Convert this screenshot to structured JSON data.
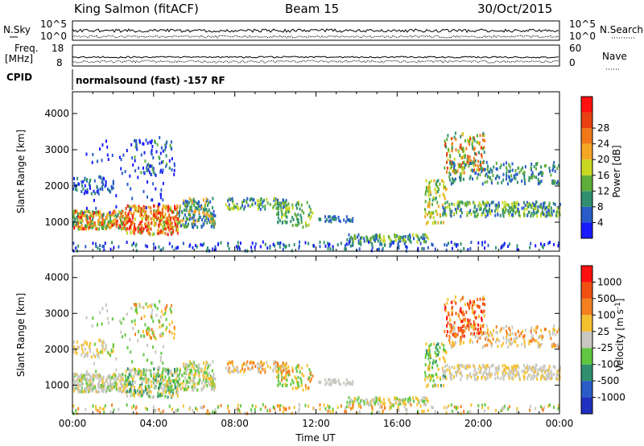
{
  "header": {
    "station": "King Salmon (fitACF)",
    "beam": "Beam 15",
    "date": "30/Oct/2015"
  },
  "top_strip": {
    "nsky_label": "N.Sky",
    "nsky_ticks": [
      "10^5",
      "10^0"
    ],
    "nsearch_label": "N.Search",
    "nsearch_ticks": [
      "10^5",
      "10^0"
    ],
    "freq_label": "Freq.",
    "freq_unit": "[MHz]",
    "freq_ticks": [
      "18",
      "8"
    ],
    "nave_label": "Nave",
    "nave_ticks": [
      "60",
      "0"
    ],
    "cpid_label": "CPID",
    "cpid_text": "normalsound (fast) -157 RF"
  },
  "chart_data": [
    {
      "type": "heatmap",
      "name": "power",
      "ylabel": "Slant Range [km]",
      "xlabel": "",
      "ylim": [
        200,
        4600
      ],
      "yticks": [
        "1000",
        "2000",
        "3000",
        "4000"
      ],
      "colorbar": {
        "label": "Power [dB]",
        "ticks": [
          "4",
          "8",
          "12",
          "16",
          "20",
          "24",
          "28"
        ],
        "colors": [
          "#1a1aff",
          "#2a5cc8",
          "#2f8f6f",
          "#5fae3a",
          "#c8d820",
          "#f5a623",
          "#f07818",
          "#e84010",
          "#ff1010"
        ]
      }
    },
    {
      "type": "heatmap",
      "name": "velocity",
      "ylabel": "Slant Range [km]",
      "xlabel": "Time UT",
      "ylim": [
        200,
        4600
      ],
      "yticks": [
        "1000",
        "2000",
        "3000",
        "4000"
      ],
      "xticks": [
        "00:00",
        "04:00",
        "08:00",
        "12:00",
        "16:00",
        "20:00",
        "00:00"
      ],
      "xlim_hours": [
        0,
        24
      ],
      "colorbar": {
        "label": "Velocity [m s-1]",
        "ticks": [
          "1000",
          "500",
          "100",
          "25",
          "-25",
          "-100",
          "-500",
          "-1000"
        ],
        "colors": [
          "#2030c0",
          "#2a5cc8",
          "#2f8f6f",
          "#5fc840",
          "#c8c8c0",
          "#f5c030",
          "#f58020",
          "#f05010",
          "#ff1010"
        ]
      }
    }
  ]
}
